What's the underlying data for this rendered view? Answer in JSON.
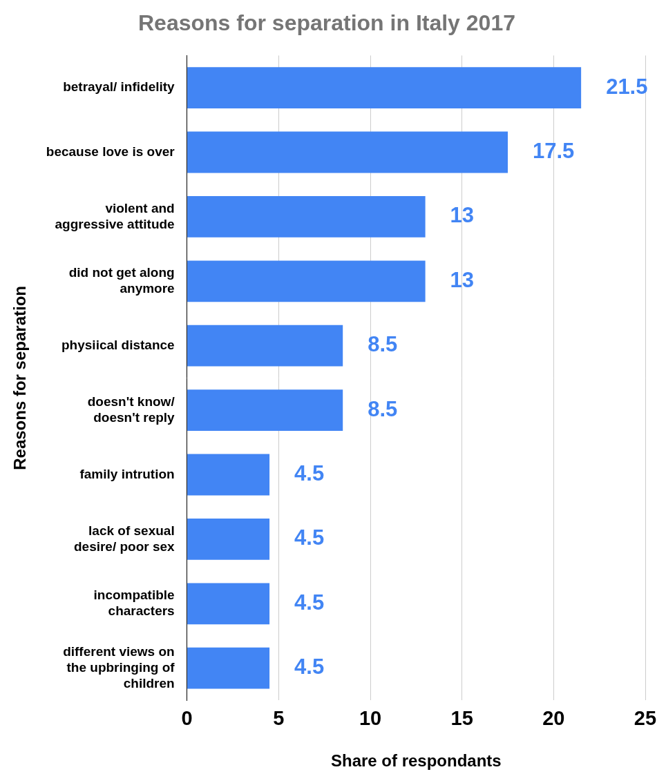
{
  "chart_data": {
    "type": "bar",
    "orientation": "horizontal",
    "title": "Reasons for separation in Italy 2017",
    "x_label": "Share of respondants",
    "y_label": "Reasons for separation",
    "categories": [
      "betrayal/ infidelity",
      "because love is over",
      "violent and aggressive attitude",
      "did not get along anymore",
      "physiical distance",
      "doesn't know/ doesn't reply",
      "family intrution",
      "lack of sexual desire/ poor sex",
      "incompatible characters",
      "different views on the upbringing of children"
    ],
    "values": [
      21.5,
      17.5,
      13,
      13,
      8.5,
      8.5,
      4.5,
      4.5,
      4.5,
      4.5
    ],
    "color": "#4285f4",
    "xlim": [
      0,
      25
    ],
    "xticks": [
      0,
      5,
      10,
      15,
      20,
      25
    ],
    "grid": true,
    "data_labels": true
  }
}
